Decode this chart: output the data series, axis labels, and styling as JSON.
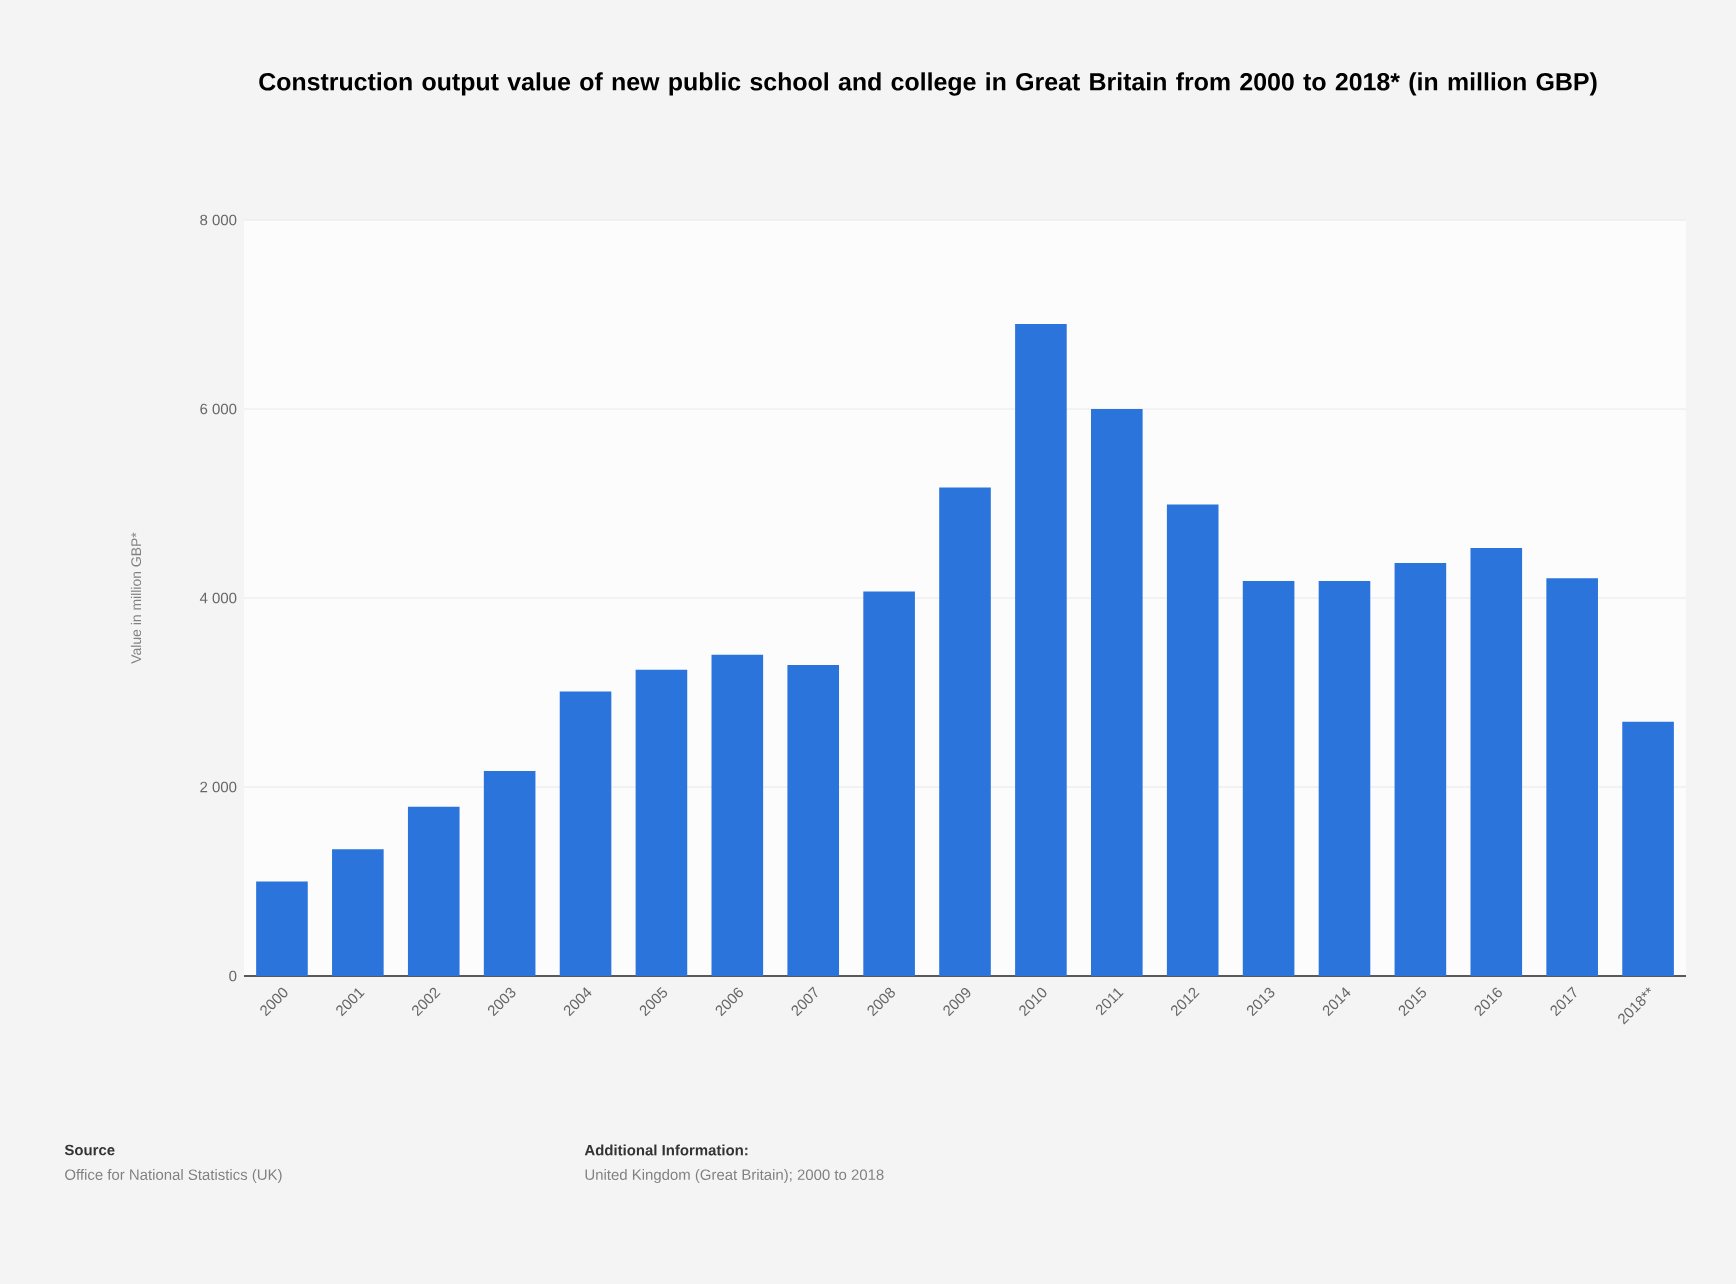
{
  "chart_data": {
    "type": "bar",
    "title": "Construction output value of new public school and college in Great Britain from 2000 to 2018* (in million GBP)",
    "ylabel": "Value in million GBP*",
    "categories": [
      "2000",
      "2001",
      "2002",
      "2003",
      "2004",
      "2005",
      "2006",
      "2007",
      "2008",
      "2009",
      "2010",
      "2011",
      "2012",
      "2013",
      "2014",
      "2015",
      "2016",
      "2017",
      "2018**"
    ],
    "values": [
      1000,
      1340,
      1790,
      2170,
      3010,
      3240,
      3400,
      3290,
      4070,
      5170,
      6900,
      6000,
      4990,
      4180,
      4180,
      4370,
      4530,
      4210,
      2690
    ],
    "color": "#2a74dc",
    "ylim": [
      0,
      8000
    ],
    "yticks": [
      0,
      {
        "value": 2000,
        "label": "2 000"
      },
      {
        "value": 4000,
        "label": "4 000"
      },
      {
        "value": 6000,
        "label": "6 000"
      },
      {
        "value": 8000,
        "label": "8 000"
      }
    ],
    "grid": "y",
    "annotations": [
      "Source",
      "Office for National Statistics (UK)",
      "Additional Information:",
      "United Kingdom (Great Britain); 2000 to 2018"
    ]
  }
}
